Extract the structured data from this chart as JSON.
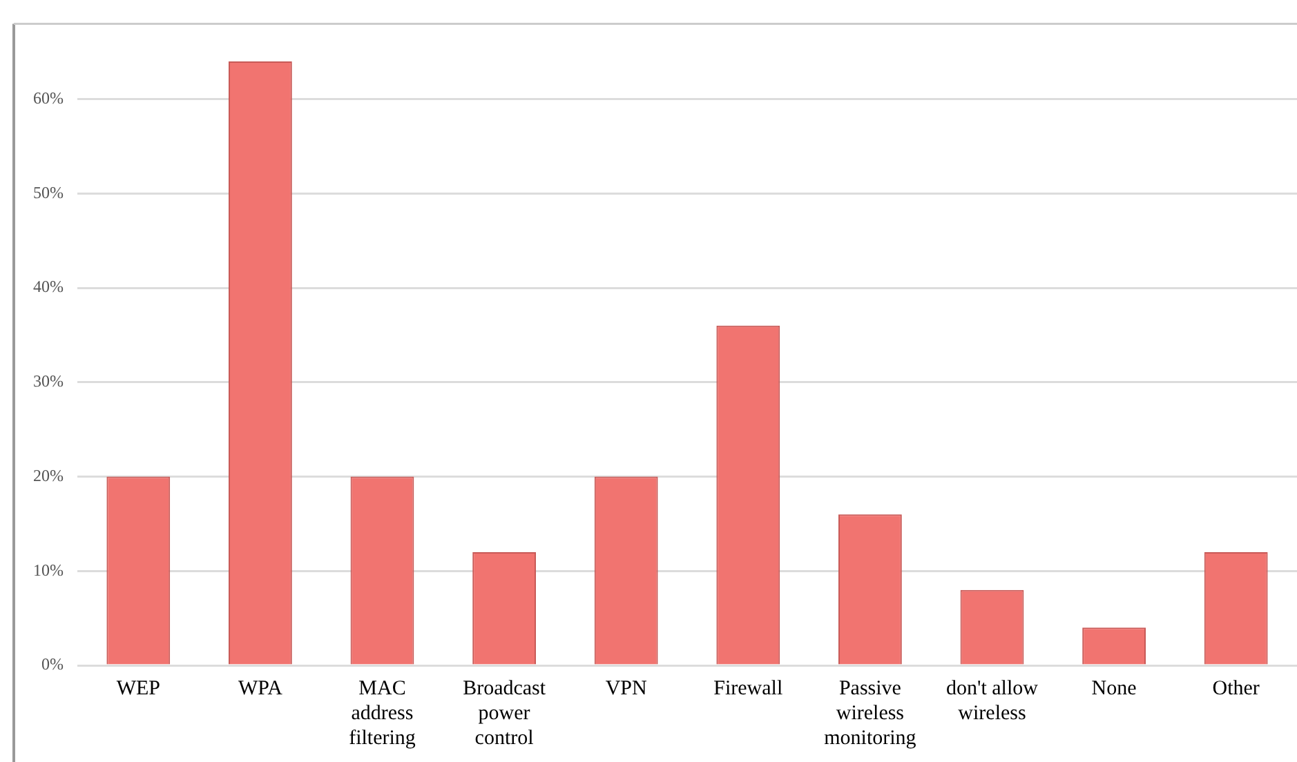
{
  "chart_data": {
    "type": "bar",
    "categories": [
      "WEP",
      "WPA",
      "MAC address filtering",
      "Broadcast power control",
      "VPN",
      "Firewall",
      "Passive wireless monitoring",
      "don't allow wireless",
      "None",
      "Other"
    ],
    "values": [
      20,
      64,
      20,
      12,
      20,
      36,
      16,
      8,
      4,
      12
    ],
    "color": "#f17470",
    "ylim": [
      0,
      68
    ],
    "yticks": [
      {
        "value": 0,
        "label": "0%"
      },
      {
        "value": 10,
        "label": "10%"
      },
      {
        "value": 20,
        "label": "20%"
      },
      {
        "value": 30,
        "label": "30%"
      },
      {
        "value": 40,
        "label": "40%"
      },
      {
        "value": 50,
        "label": "50%"
      },
      {
        "value": 60,
        "label": "60%"
      }
    ],
    "grid": "y",
    "legend": false
  }
}
